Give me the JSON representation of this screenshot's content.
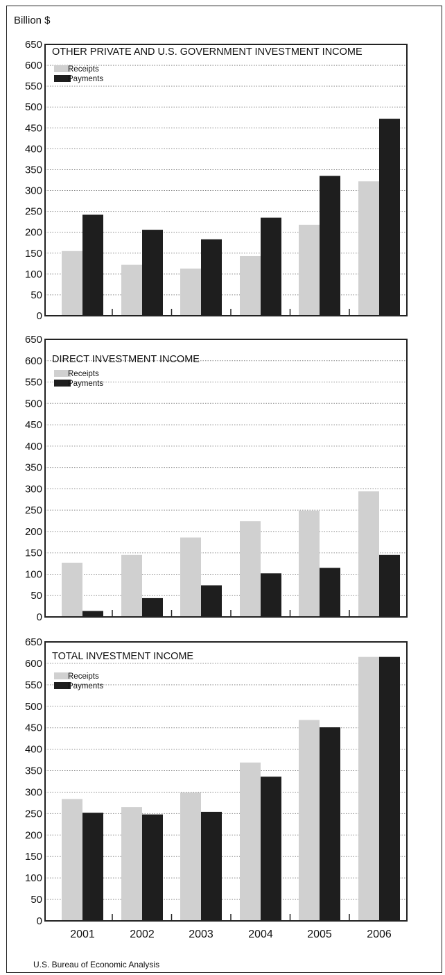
{
  "unit_label": "Billion $",
  "source": "U.S. Bureau of Economic Analysis",
  "colors": {
    "receipts": "#d0d0d0",
    "payments": "#1e1e1e",
    "grid": "#8a8a8a",
    "frame": "#222222"
  },
  "chart_data": [
    {
      "type": "bar",
      "title": "OTHER PRIVATE AND U.S. GOVERNMENT INVESTMENT INCOME",
      "categories": [
        "2001",
        "2002",
        "2003",
        "2004",
        "2005",
        "2006"
      ],
      "series": [
        {
          "name": "Receipts",
          "values": [
            155,
            122,
            113,
            143,
            218,
            322
          ]
        },
        {
          "name": "Payments",
          "values": [
            242,
            206,
            183,
            235,
            335,
            472
          ]
        }
      ],
      "ylim": [
        0,
        650
      ],
      "yticks": [
        "0",
        "50",
        "100",
        "150",
        "200",
        "250",
        "300",
        "350",
        "400",
        "450",
        "500",
        "550",
        "600",
        "650"
      ],
      "grid": true,
      "legend": "top-left"
    },
    {
      "type": "bar",
      "title": "DIRECT INVESTMENT INCOME",
      "categories": [
        "2001",
        "2002",
        "2003",
        "2004",
        "2005",
        "2006"
      ],
      "series": [
        {
          "name": "Receipts",
          "values": [
            127,
            145,
            186,
            224,
            249,
            294
          ]
        },
        {
          "name": "Payments",
          "values": [
            14,
            44,
            74,
            102,
            115,
            145
          ]
        }
      ],
      "ylim": [
        0,
        650
      ],
      "yticks": [
        "0",
        "50",
        "100",
        "150",
        "200",
        "250",
        "300",
        "350",
        "400",
        "450",
        "500",
        "550",
        "600",
        "650"
      ],
      "grid": true,
      "legend": "top-left"
    },
    {
      "type": "bar",
      "title": "TOTAL INVESTMENT INCOME",
      "categories": [
        "2001",
        "2002",
        "2003",
        "2004",
        "2005",
        "2006"
      ],
      "xticklabels": [
        "2001",
        "2002",
        "2003",
        "2004",
        "2005",
        "2006"
      ],
      "series": [
        {
          "name": "Receipts",
          "values": [
            284,
            265,
            299,
            369,
            468,
            615
          ]
        },
        {
          "name": "Payments",
          "values": [
            252,
            248,
            254,
            336,
            451,
            615
          ]
        }
      ],
      "ylim": [
        0,
        650
      ],
      "yticks": [
        "0",
        "50",
        "100",
        "150",
        "200",
        "250",
        "300",
        "350",
        "400",
        "450",
        "500",
        "550",
        "600",
        "650"
      ],
      "grid": true,
      "legend": "top-left"
    }
  ]
}
